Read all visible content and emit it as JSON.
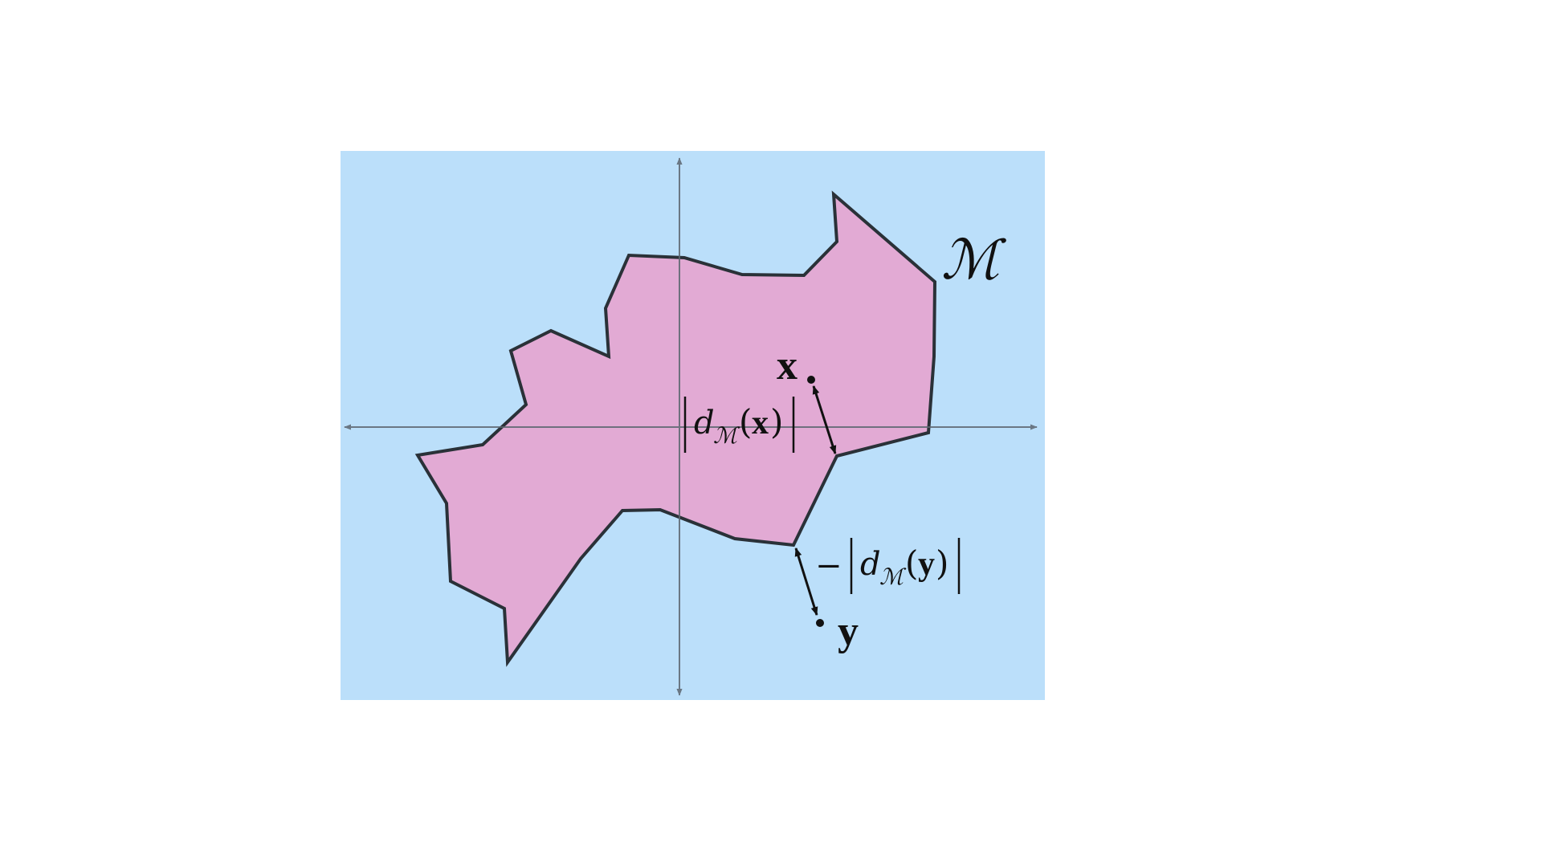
{
  "colors": {
    "background": "#ffffff",
    "panel": "#bbdffa",
    "region_fill": "#e2aad4",
    "region_stroke": "#2a3138",
    "axes": "#5c6670",
    "arrows": "#111111",
    "text": "#111111"
  },
  "labels": {
    "manifold": "ℳ",
    "point_x": "x",
    "point_y": "y",
    "dist_x": {
      "d": "d",
      "sub": "ℳ",
      "open": "(",
      "arg": "x",
      "close": ")"
    },
    "dist_y": {
      "minus": "−",
      "d": "d",
      "sub": "ℳ",
      "open": "(",
      "arg": "y",
      "close": ")"
    }
  },
  "icons": {
    "x_axis": "double-arrow-horizontal",
    "y_axis": "double-arrow-vertical",
    "distance_arrow_x": "double-headed-arrow",
    "distance_arrow_y": "double-headed-arrow"
  }
}
